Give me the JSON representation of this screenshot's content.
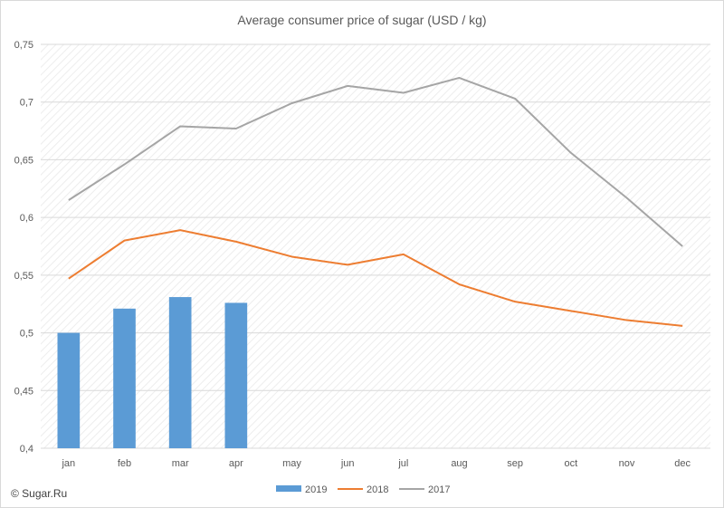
{
  "chart_data": {
    "type": "bar+line",
    "title": "Average consumer price of sugar (USD / kg)",
    "categories": [
      "jan",
      "feb",
      "mar",
      "apr",
      "may",
      "jun",
      "jul",
      "aug",
      "sep",
      "oct",
      "nov",
      "dec"
    ],
    "ylim": [
      0.4,
      0.75
    ],
    "yticks": [
      "0,4",
      "0,45",
      "0,5",
      "0,55",
      "0,6",
      "0,65",
      "0,7",
      "0,75"
    ],
    "ytick_values": [
      0.4,
      0.45,
      0.5,
      0.55,
      0.6,
      0.65,
      0.7,
      0.75
    ],
    "grid": true,
    "legend_position": "bottom",
    "series": [
      {
        "name": "2019",
        "type": "bar",
        "color": "#5b9bd5",
        "values": [
          0.5,
          0.521,
          0.531,
          0.526,
          null,
          null,
          null,
          null,
          null,
          null,
          null,
          null
        ]
      },
      {
        "name": "2018",
        "type": "line",
        "color": "#ed7d31",
        "values": [
          0.547,
          0.58,
          0.589,
          0.579,
          0.566,
          0.559,
          0.568,
          0.542,
          0.527,
          0.519,
          0.511,
          0.506
        ]
      },
      {
        "name": "2017",
        "type": "line",
        "color": "#a5a5a5",
        "values": [
          0.615,
          0.646,
          0.679,
          0.677,
          0.699,
          0.714,
          0.708,
          0.721,
          0.703,
          0.656,
          0.617,
          0.575
        ]
      }
    ]
  },
  "credit": "© Sugar.Ru"
}
